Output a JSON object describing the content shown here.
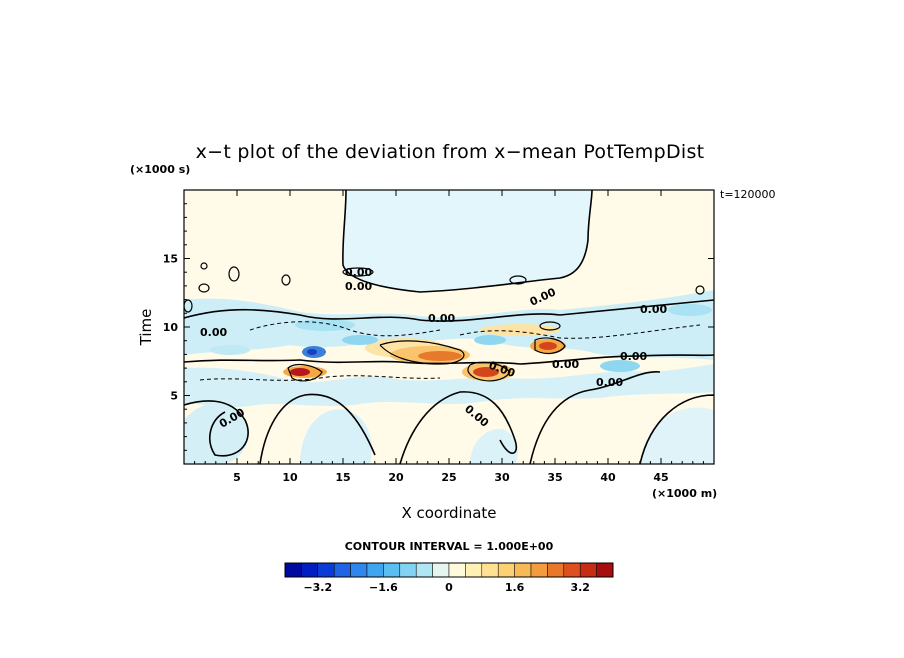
{
  "chart_data": {
    "type": "heatmap",
    "title": "x−t plot of the deviation from x−mean PotTempDist",
    "xlabel": "X coordinate",
    "ylabel": "Time",
    "x_unit": "(×1000 m)",
    "y_unit": "(×1000 s)",
    "time_stamp": "t=120000",
    "contour_interval_text": "CONTOUR INTERVAL = 1.000E+00",
    "xlim": [
      0,
      50
    ],
    "ylim": [
      0,
      20
    ],
    "x_ticks": [
      5,
      10,
      15,
      20,
      25,
      30,
      35,
      40,
      45
    ],
    "y_ticks": [
      5,
      10,
      15
    ],
    "colorbar": {
      "range": [
        -4.0,
        4.0
      ],
      "step": 0.4,
      "tick_labels": [
        "−3.2",
        "−1.6",
        "0",
        "1.6",
        "3.2"
      ],
      "tick_values": [
        -3.2,
        -1.6,
        0,
        1.6,
        3.2
      ]
    },
    "contour_labels": [
      "0.00",
      "0.00",
      "0.00",
      "0.00",
      "0.00",
      "0.00",
      "0.00",
      "0.00",
      "0.00",
      "0.00",
      "0.00",
      "0.00"
    ],
    "features": [
      {
        "x": 12.0,
        "t": 7.0,
        "value": 3.6
      },
      {
        "x": 12.5,
        "t": 8.5,
        "value": -3.2
      },
      {
        "x": 24.5,
        "t": 7.8,
        "value": 3.0
      },
      {
        "x": 28.5,
        "t": 6.5,
        "value": 3.2
      },
      {
        "x": 34.5,
        "t": 8.5,
        "value": 3.0
      },
      {
        "x": 21.0,
        "t": 8.8,
        "value": 1.2
      },
      {
        "x": 30.0,
        "t": 9.2,
        "value": -1.2
      },
      {
        "x": 41.0,
        "t": 7.0,
        "value": -1.6
      },
      {
        "x": 18.0,
        "t": 10.0,
        "value": -1.0
      },
      {
        "x": 45.0,
        "t": 10.5,
        "value": -0.8
      },
      {
        "x": 27.0,
        "t": 16.0,
        "value": -0.3
      },
      {
        "x": 5.0,
        "t": 3.0,
        "value": -0.5
      },
      {
        "x": 15.0,
        "t": 2.0,
        "value": -0.6
      },
      {
        "x": 22.0,
        "t": 3.5,
        "value": 0.4
      },
      {
        "x": 32.0,
        "t": 2.5,
        "value": -0.4
      }
    ]
  }
}
